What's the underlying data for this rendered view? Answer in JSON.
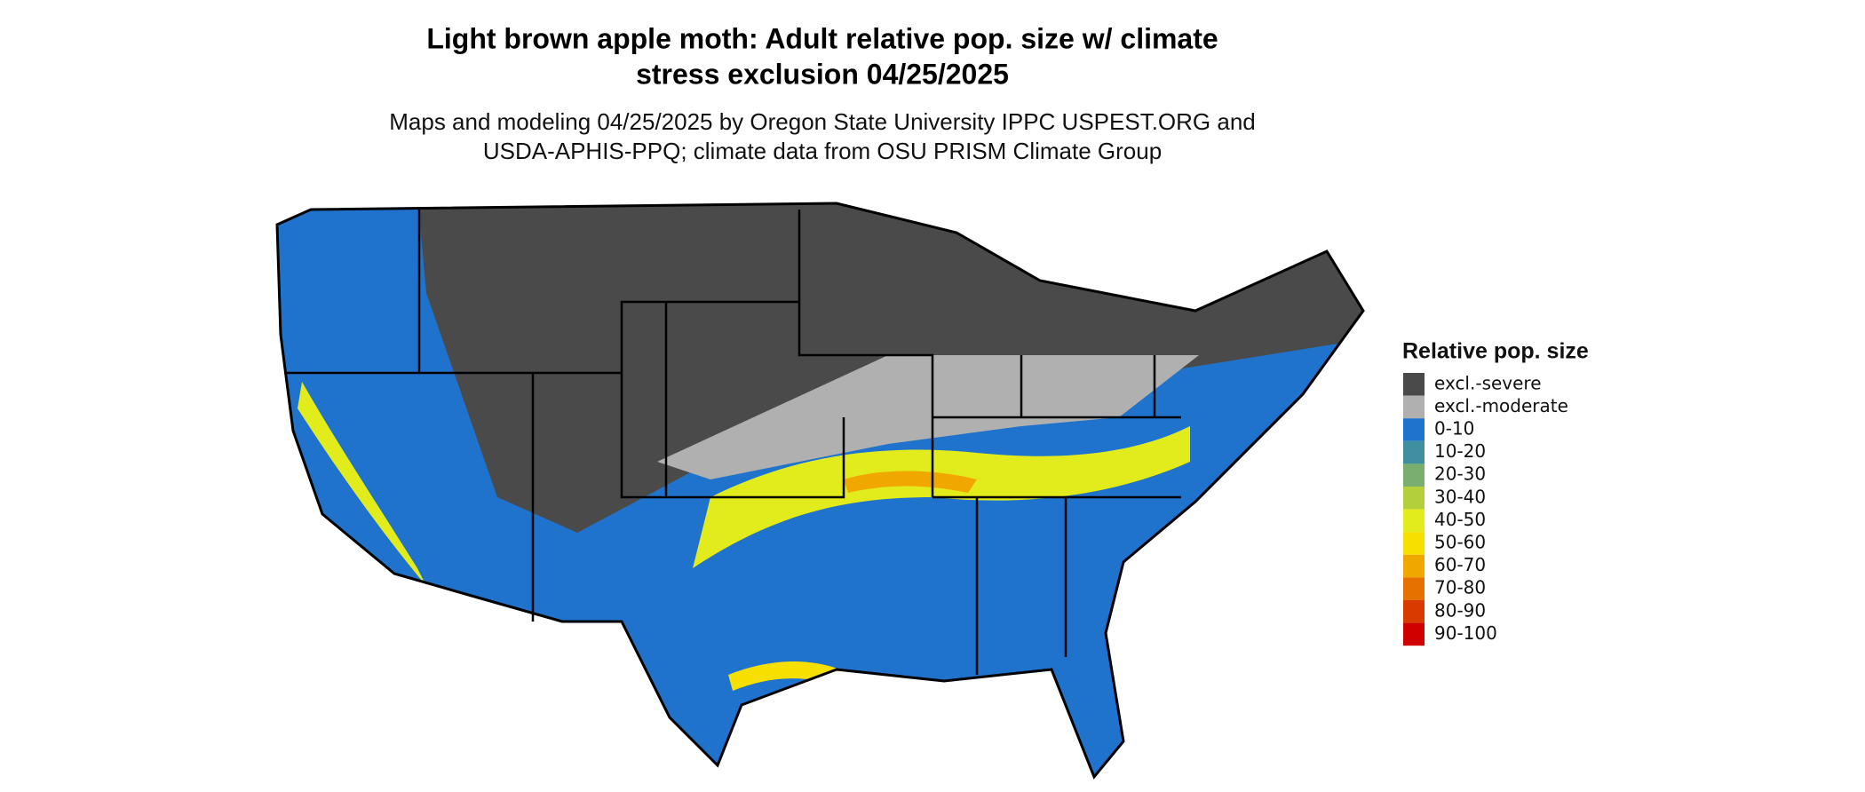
{
  "header": {
    "title_lines": [
      "Light brown apple moth: Adult relative pop. size w/ climate",
      "stress exclusion 04/25/2025"
    ],
    "subtitle_lines": [
      "Maps and modeling 04/25/2025 by Oregon State University IPPC USPEST.ORG and",
      "USDA-APHIS-PPQ; climate data from OSU PRISM Climate Group"
    ]
  },
  "legend": {
    "title": "Relative pop. size",
    "items": [
      {
        "label": "excl.-severe",
        "color": "#4a4a4a"
      },
      {
        "label": "excl.-moderate",
        "color": "#b0b0b0"
      },
      {
        "label": "0-10",
        "color": "#1f73cc"
      },
      {
        "label": "10-20",
        "color": "#3f8fa0"
      },
      {
        "label": "20-30",
        "color": "#7aae6e"
      },
      {
        "label": "30-40",
        "color": "#b3cf3c"
      },
      {
        "label": "40-50",
        "color": "#e2ec1c"
      },
      {
        "label": "50-60",
        "color": "#f7df00"
      },
      {
        "label": "60-70",
        "color": "#f0a800"
      },
      {
        "label": "70-80",
        "color": "#e57200"
      },
      {
        "label": "80-90",
        "color": "#d93a00"
      },
      {
        "label": "90-100",
        "color": "#d00000"
      }
    ]
  }
}
